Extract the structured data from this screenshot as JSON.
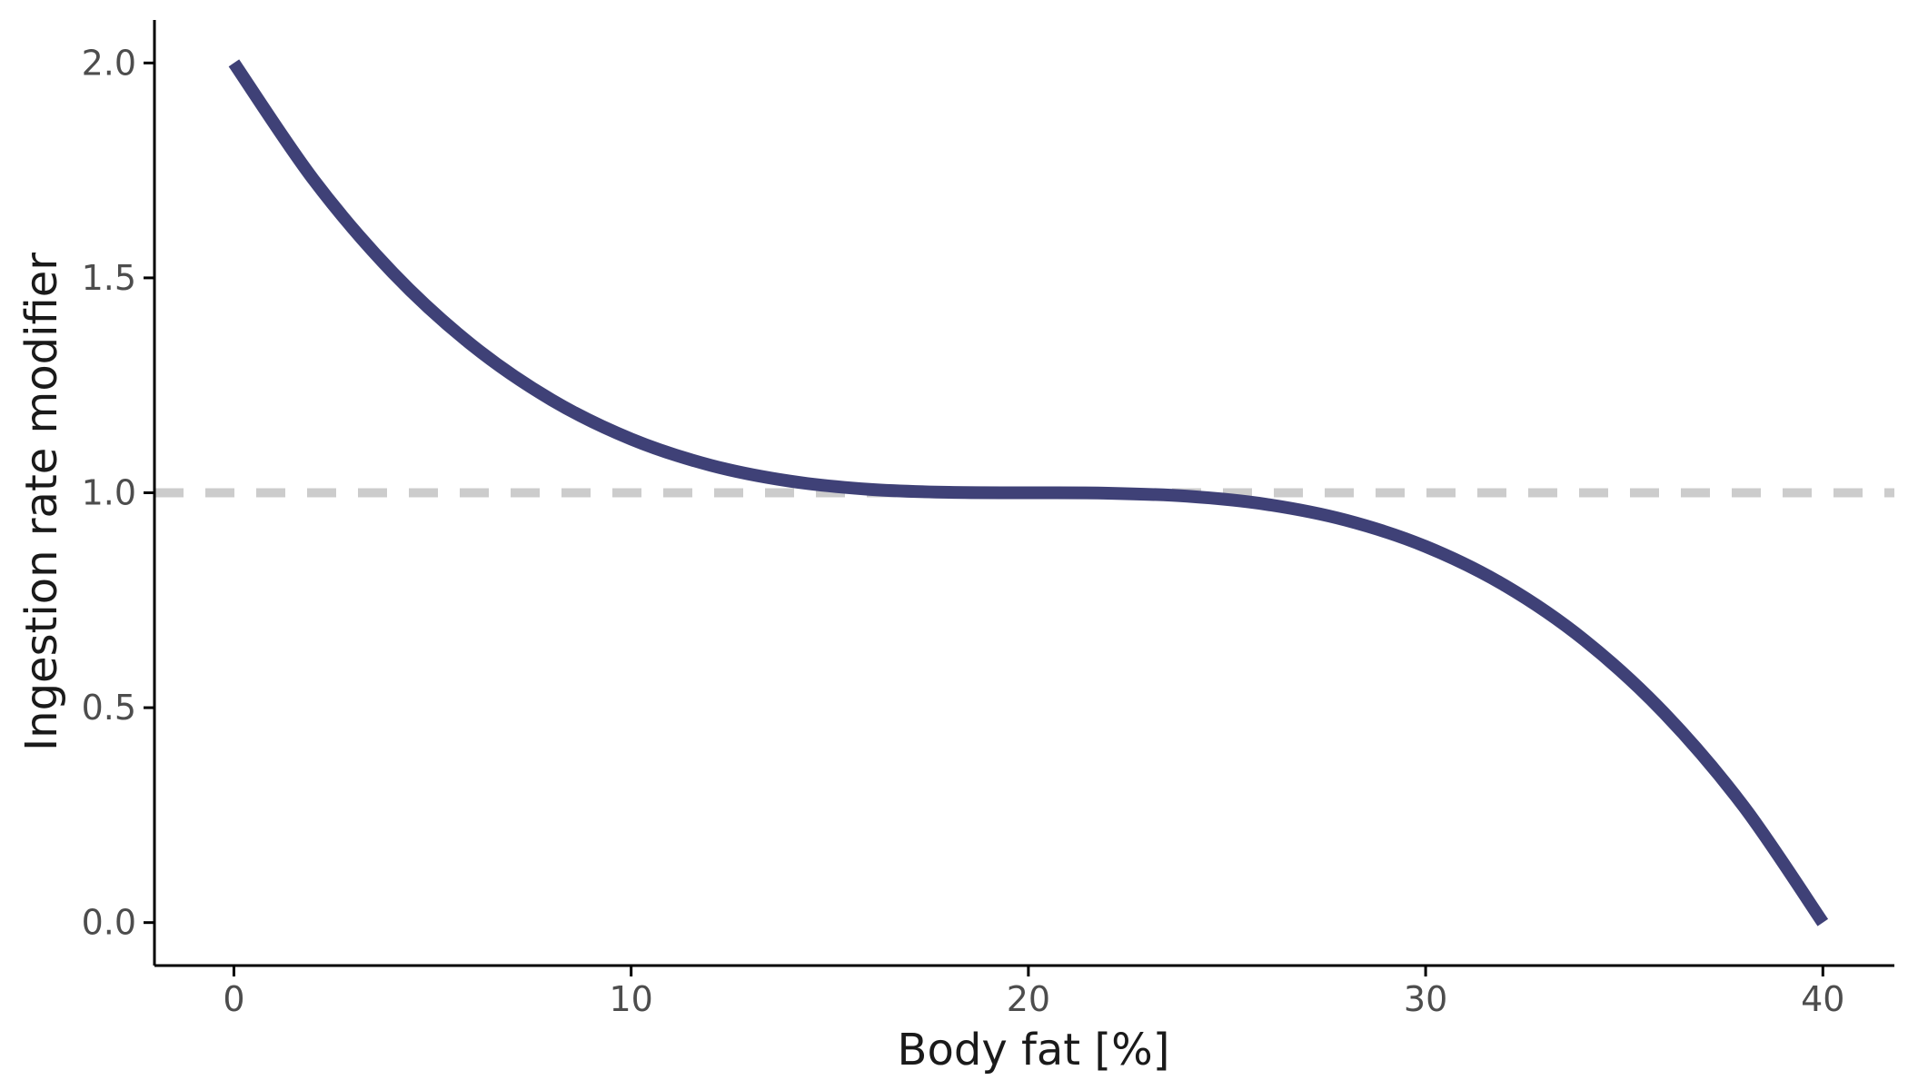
{
  "chart_data": {
    "type": "line",
    "title": "",
    "xlabel": "Body fat [%]",
    "ylabel": "Ingestion rate modifier",
    "xlim": [
      -2,
      41.8
    ],
    "ylim": [
      -0.1,
      2.1
    ],
    "xticks": [
      0,
      10,
      20,
      30,
      40
    ],
    "yticks": [
      0.0,
      0.5,
      1.0,
      1.5,
      2.0
    ],
    "x_tick_labels": [
      "0",
      "10",
      "20",
      "30",
      "40"
    ],
    "y_tick_labels": [
      "0.0",
      "0.5",
      "1.0",
      "1.5",
      "2.0"
    ],
    "grid": false,
    "reference_line": {
      "y": 1.0,
      "style": "dashed",
      "color": "#cccccc"
    },
    "series": [
      {
        "color": "#3f4177",
        "x": [
          0,
          2,
          4,
          6,
          8,
          10,
          12,
          14,
          16,
          18,
          20,
          22,
          24,
          26,
          28,
          30,
          32,
          34,
          36,
          38,
          40
        ],
        "y": [
          2.0,
          1.729,
          1.512,
          1.343,
          1.216,
          1.125,
          1.064,
          1.027,
          1.008,
          1.001,
          1.0,
          0.999,
          0.992,
          0.973,
          0.936,
          0.875,
          0.784,
          0.657,
          0.488,
          0.271,
          0.0
        ]
      }
    ]
  }
}
